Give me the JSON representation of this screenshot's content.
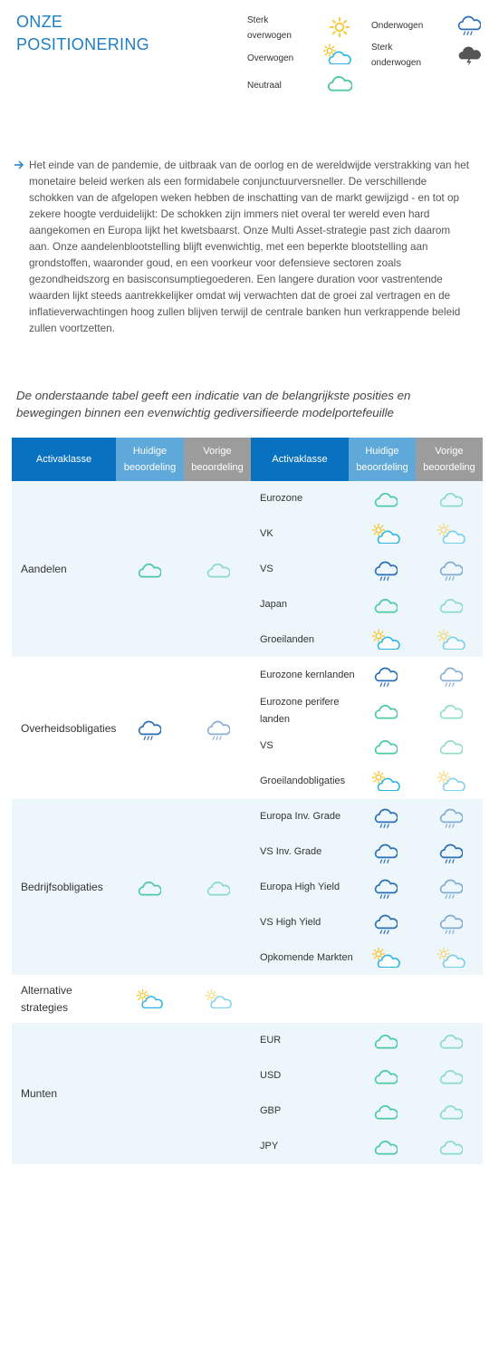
{
  "page_title_line1": "ONZE",
  "page_title_line2": "POSITIONERING",
  "legend": [
    {
      "label": "Sterk overwogen",
      "icon": "sun"
    },
    {
      "label": "Overwogen",
      "icon": "sun-cloud"
    },
    {
      "label": "Neutraal",
      "icon": "cloud"
    },
    {
      "label": "Onderwogen",
      "icon": "rain"
    },
    {
      "label": "Sterk onderwogen",
      "icon": "storm"
    }
  ],
  "paragraph": "Het einde van de pandemie, de uitbraak van de oorlog en de wereldwijde verstrakking van het monetaire beleid werken als een formidabele conjunctuurversneller. De verschillende schokken van de afgelopen weken hebben de inschatting van de markt gewijzigd - en tot op zekere hoogte verduidelijkt: De schokken zijn immers niet overal ter wereld even hard aangekomen en Europa lijkt het kwetsbaarst. Onze Multi Asset-strategie past zich daarom aan. Onze aandelenblootstelling blijft evenwichtig, met een beperkte blootstelling aan grondstoffen, waaronder goud, en een voorkeur voor defensieve sectoren zoals gezondheidszorg en basisconsumptiegoederen. Een langere duration voor vastrentende waarden lijkt steeds aantrekkelijker omdat wij verwachten dat de groei zal vertragen en de inflatieverwachtingen hoog zullen blijven terwijl de centrale banken hun verkrappende beleid zullen voortzetten.",
  "intro": "De onderstaande tabel geeft een indicatie van de belangrijkste posities en bewegingen binnen een evenwichtig gediversifieerde modelportefeuille",
  "headers": [
    "Activaklasse",
    "Huidige beoordeling",
    "Vorige beoordeling",
    "Activaklasse",
    "Huidige beoordeling",
    "Vorige beoordeling"
  ],
  "colors": {
    "title": "#1f7ec1",
    "header_dark": "#0872c0",
    "header_light": "#5ea8da",
    "header_grey": "#9c9c9c",
    "band": "#edf7fb",
    "neutral": "#4dc9a6",
    "overweight": "#29b6e6",
    "sun": "#f7c325",
    "under": "#2a6fb5",
    "storm": "#555555"
  },
  "groups": [
    {
      "name": "Aandelen",
      "current": "cloud",
      "previous": "cloud",
      "shaded": true,
      "rows": [
        {
          "name": "Eurozone",
          "current": "cloud",
          "previous": "cloud"
        },
        {
          "name": "VK",
          "current": "sun-cloud",
          "previous": "sun-cloud"
        },
        {
          "name": "VS",
          "current": "rain",
          "previous": "rain"
        },
        {
          "name": "Japan",
          "current": "cloud",
          "previous": "cloud"
        },
        {
          "name": "Groeilanden",
          "current": "sun-cloud",
          "previous": "sun-cloud"
        }
      ]
    },
    {
      "name": "Overheidsobligaties",
      "current": "rain",
      "previous": "rain",
      "shaded": false,
      "rows": [
        {
          "name": "Eurozone kernlanden",
          "current": "rain",
          "previous": "rain"
        },
        {
          "name": "Eurozone perifere landen",
          "current": "cloud",
          "previous": "cloud"
        },
        {
          "name": "VS",
          "current": "cloud",
          "previous": "cloud"
        },
        {
          "name": "Groeilandobligaties",
          "current": "sun-cloud",
          "previous": "sun-cloud"
        }
      ]
    },
    {
      "name": "Bedrijfsobligaties",
      "current": "cloud",
      "previous": "cloud",
      "shaded": true,
      "rows": [
        {
          "name": "Europa Inv. Grade",
          "current": "rain",
          "previous": "rain"
        },
        {
          "name": "VS Inv. Grade",
          "current": "rain",
          "previous": "rain-strong"
        },
        {
          "name": "Europa High Yield",
          "current": "rain",
          "previous": "rain"
        },
        {
          "name": "VS High Yield",
          "current": "rain",
          "previous": "rain"
        },
        {
          "name": "Opkomende Markten",
          "current": "sun-cloud",
          "previous": "sun-cloud"
        }
      ]
    },
    {
      "name": "Alternative strategies",
      "current": "sun-cloud",
      "previous": "sun-cloud",
      "shaded": false,
      "rows": []
    },
    {
      "name": "Munten",
      "current": "",
      "previous": "",
      "shaded": true,
      "rows": [
        {
          "name": "EUR",
          "current": "cloud",
          "previous": "cloud"
        },
        {
          "name": "USD",
          "current": "cloud",
          "previous": "cloud"
        },
        {
          "name": "GBP",
          "current": "cloud",
          "previous": "cloud"
        },
        {
          "name": "JPY",
          "current": "cloud",
          "previous": "cloud"
        }
      ]
    }
  ]
}
